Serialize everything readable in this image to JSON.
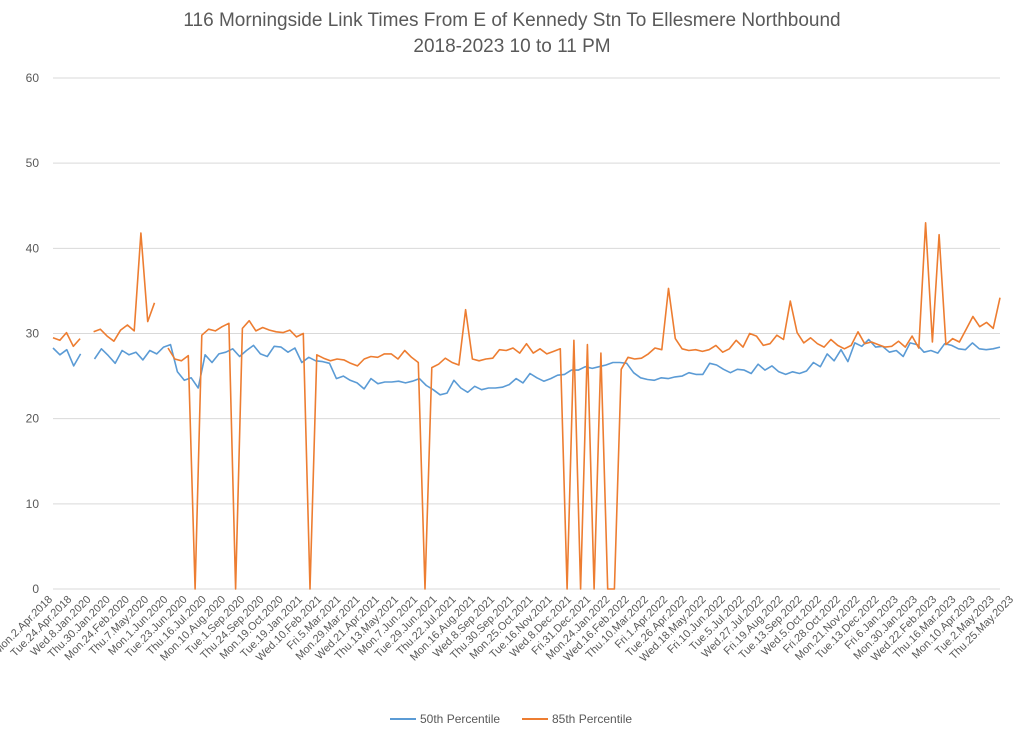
{
  "chart_data": {
    "type": "line",
    "title": "116 Morningside Link Times From E of Kennedy Stn To Ellesmere Northbound",
    "subtitle": "2018-2023 10 to 11 PM",
    "ylim": [
      0,
      60
    ],
    "yticks": [
      0,
      10,
      20,
      30,
      40,
      50,
      60
    ],
    "grid": true,
    "legend_position": "bottom",
    "x_tick_labels": [
      "Mon.2.Apr.2018",
      "Tue.24.Apr.2018",
      "Wed.8.Jan.2020",
      "Thu.30.Jan.2020",
      "Mon.24.Feb.2020",
      "Thu.7.May.2020",
      "Mon.1.Jun.2020",
      "Tue.23.Jun.2020",
      "Thu.16.Jul.2020",
      "Mon.10.Aug.2020",
      "Tue.1.Sep.2020",
      "Thu.24.Sep.2020",
      "Mon.19.Oct.2020",
      "Tue.19.Jan.2021",
      "Wed.10.Feb.2021",
      "Fri.5.Mar.2021",
      "Mon.29.Mar.2021",
      "Wed.21.Apr.2021",
      "Thu.13.May.2021",
      "Mon.7.Jun.2021",
      "Tue.29.Jun.2021",
      "Thu.22.Jul.2021",
      "Mon.16.Aug.2021",
      "Wed.8.Sep.2021",
      "Thu.30.Sep.2021",
      "Mon.25.Oct.2021",
      "Tue.16.Nov.2021",
      "Wed.8.Dec.2021",
      "Fri.31.Dec.2021",
      "Mon.24.Jan.2022",
      "Wed.16.Feb.2022",
      "Thu.10.Mar.2022",
      "Fri.1.Apr.2022",
      "Tue.26.Apr.2022",
      "Wed.18.May.2022",
      "Fri.10.Jun.2022",
      "Tue.5.Jul.2022",
      "Wed.27.Jul.2022",
      "Fri.19.Aug.2022",
      "Tue.13.Sep.2022",
      "Wed.5.Oct.2022",
      "Fri.28.Oct.2022",
      "Mon.21.Nov.2022",
      "Tue.13.Dec.2022",
      "Fri.6.Jan.2023",
      "Mon.30.Jan.2023",
      "Wed.22.Feb.2023",
      "Thu.16.Mar.2023",
      "Mon.10.Apr.2023",
      "Tue.2.May.2023",
      "Thu.25.May.2023"
    ],
    "series": [
      {
        "name": "50th Percentile",
        "color": "#5B9BD5",
        "values": [
          28.3,
          27.5,
          28.1,
          26.2,
          27.6,
          null,
          27.0,
          28.2,
          27.4,
          26.5,
          28.0,
          27.5,
          27.8,
          26.9,
          28.0,
          27.6,
          28.4,
          28.7,
          25.5,
          24.5,
          24.8,
          23.6,
          27.5,
          26.6,
          27.6,
          27.8,
          28.2,
          27.3,
          28.0,
          28.6,
          27.6,
          27.3,
          28.5,
          28.4,
          27.8,
          28.3,
          26.6,
          27.2,
          26.8,
          26.7,
          26.5,
          24.7,
          25.0,
          24.5,
          24.2,
          23.5,
          24.7,
          24.1,
          24.3,
          24.3,
          24.4,
          24.2,
          24.4,
          24.7,
          23.9,
          23.4,
          22.8,
          23.0,
          24.5,
          23.6,
          23.1,
          23.8,
          23.4,
          23.6,
          23.6,
          23.7,
          24.0,
          24.7,
          24.2,
          25.3,
          24.8,
          24.4,
          24.7,
          25.1,
          25.2,
          25.7,
          25.7,
          26.1,
          25.9,
          26.1,
          26.3,
          26.6,
          26.6,
          26.5,
          25.4,
          24.8,
          24.6,
          24.5,
          24.8,
          24.7,
          24.9,
          25.0,
          25.4,
          25.2,
          25.2,
          26.5,
          26.3,
          25.8,
          25.4,
          25.8,
          25.7,
          25.3,
          26.4,
          25.7,
          26.2,
          25.5,
          25.2,
          25.5,
          25.3,
          25.6,
          26.6,
          26.1,
          27.6,
          26.8,
          28.1,
          26.7,
          28.9,
          28.5,
          29.3,
          28.4,
          28.5,
          27.8,
          28.0,
          27.3,
          28.9,
          28.7,
          27.8,
          28.0,
          27.7,
          28.8,
          28.6,
          28.2,
          28.1,
          28.9,
          28.2,
          28.1,
          28.2,
          28.4
        ],
        "note_skip": ""
      },
      {
        "name": "85th Percentile",
        "color": "#ED7D31",
        "values": [
          29.5,
          29.2,
          30.1,
          28.5,
          29.4,
          null,
          30.2,
          30.5,
          29.7,
          29.1,
          30.4,
          31.0,
          30.3,
          41.8,
          31.4,
          33.6,
          null,
          28.3,
          27.0,
          26.8,
          27.4,
          0,
          29.8,
          30.5,
          30.3,
          30.8,
          31.2,
          0,
          30.6,
          31.5,
          30.3,
          30.7,
          30.4,
          30.2,
          30.1,
          30.4,
          29.6,
          30.0,
          0,
          27.5,
          27.1,
          26.8,
          27.0,
          26.9,
          26.5,
          26.2,
          27.0,
          27.3,
          27.2,
          27.6,
          27.6,
          27.0,
          28.0,
          27.2,
          26.6,
          0,
          26.0,
          26.4,
          27.1,
          26.6,
          26.3,
          32.8,
          27.0,
          26.8,
          27.0,
          27.1,
          28.1,
          28.0,
          28.3,
          27.7,
          28.8,
          27.7,
          28.2,
          27.6,
          27.9,
          28.2,
          0,
          29.2,
          0,
          28.7,
          0,
          27.7,
          0,
          0,
          25.8,
          27.2,
          27.0,
          27.1,
          27.6,
          28.3,
          28.1,
          35.3,
          29.4,
          28.2,
          28.0,
          28.1,
          27.9,
          28.1,
          28.6,
          27.8,
          28.2,
          29.2,
          28.4,
          30.0,
          29.7,
          28.6,
          28.8,
          29.8,
          29.3,
          33.8,
          30.1,
          28.9,
          29.5,
          28.8,
          28.4,
          29.3,
          28.6,
          28.2,
          28.6,
          30.2,
          28.8,
          29.0,
          28.7,
          28.4,
          28.5,
          29.1,
          28.4,
          29.7,
          28.3,
          43.0,
          29.0,
          41.6,
          28.7,
          29.4,
          29.0,
          30.5,
          32.0,
          30.8,
          31.3,
          30.6,
          34.2
        ]
      }
    ]
  }
}
